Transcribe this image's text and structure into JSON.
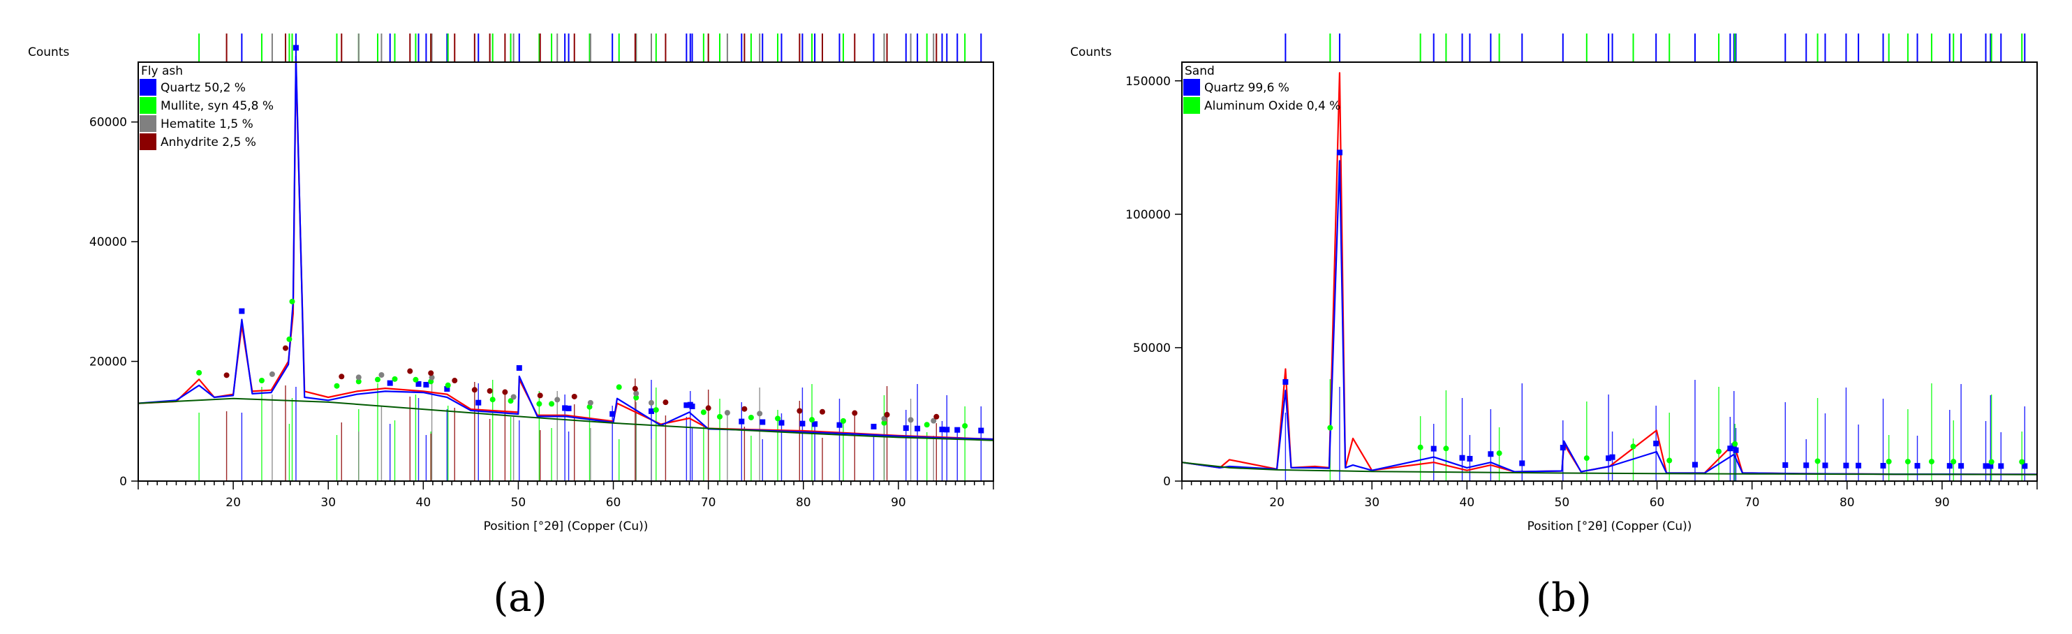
{
  "chart_data": [
    {
      "type": "line",
      "panel_label": "(a)",
      "title": "Fly ash",
      "xlabel": "Position [°2θ] (Copper (Cu))",
      "ylabel": "Counts",
      "xlim": [
        10,
        100
      ],
      "ylim": [
        0,
        70000
      ],
      "x_ticks": [
        20,
        30,
        40,
        50,
        60,
        70,
        80,
        90
      ],
      "y_ticks": [
        0,
        20000,
        40000,
        60000
      ],
      "legend_placement": "top-left",
      "legend": [
        {
          "label": "Quartz 50,2 %",
          "color": "#0000ff"
        },
        {
          "label": "Mullite, syn 45,8 %",
          "color": "#00ff00"
        },
        {
          "label": "Hematite 1,5 %",
          "color": "#808080"
        },
        {
          "label": "Anhydrite 2,5 %",
          "color": "#8b0000"
        }
      ],
      "series": [
        {
          "color": "#ff0000",
          "x": [
            10,
            14,
            16.4,
            18,
            20,
            20.9,
            22,
            24,
            25.8,
            26.3,
            26.6,
            27.5,
            30,
            33,
            36,
            40,
            42.5,
            45,
            50,
            50.1,
            52,
            55,
            60,
            60.4,
            65,
            68,
            70,
            75,
            80,
            85,
            90,
            95,
            100
          ],
          "y": [
            13000,
            13300,
            17000,
            14000,
            14500,
            26000,
            15000,
            15200,
            20000,
            28000,
            70000,
            15000,
            14000,
            15000,
            15500,
            15000,
            14500,
            12000,
            11500,
            17000,
            11000,
            11000,
            10000,
            13000,
            9500,
            10500,
            8800,
            8600,
            8400,
            8000,
            7600,
            7300,
            7000
          ]
        },
        {
          "color": "#0000ff",
          "x": [
            10,
            14,
            16.4,
            18,
            20,
            20.9,
            22,
            24,
            25.8,
            26.3,
            26.6,
            27.5,
            30,
            33,
            36,
            40,
            42.5,
            45,
            50,
            50.1,
            52,
            55,
            60,
            60.4,
            65,
            68,
            70,
            75,
            80,
            85,
            90,
            95,
            100
          ],
          "y": [
            13000,
            13500,
            16000,
            14000,
            14300,
            27000,
            14600,
            14800,
            19500,
            30000,
            71000,
            14000,
            13500,
            14500,
            15000,
            14800,
            14000,
            11800,
            11200,
            17500,
            10800,
            10800,
            9800,
            13800,
            9300,
            11500,
            8700,
            8500,
            8200,
            7900,
            7500,
            7200,
            7000
          ]
        },
        {
          "color": "#005a00",
          "x": [
            10,
            20,
            30,
            40,
            50,
            60,
            70,
            80,
            90,
            100
          ],
          "y": [
            13000,
            13800,
            13200,
            12000,
            10800,
            9700,
            8800,
            8000,
            7300,
            6800
          ]
        }
      ],
      "phase_markers": [
        {
          "phase": "Quartz",
          "color": "#0000ff",
          "x": [
            20.9,
            26.6,
            36.5,
            39.5,
            40.3,
            42.5,
            45.8,
            50.1,
            54.9,
            55.3,
            59.9,
            64.0,
            67.7,
            68.1,
            68.3,
            73.5,
            75.7,
            77.7,
            79.9,
            81.2,
            83.8,
            87.4,
            90.8,
            92.0,
            94.6,
            95.1,
            96.2,
            98.7
          ]
        },
        {
          "phase": "Mullite, syn",
          "color": "#00ff00",
          "x": [
            16.4,
            23.0,
            25.9,
            26.2,
            30.9,
            33.2,
            35.2,
            37.0,
            39.2,
            40.8,
            42.6,
            47.3,
            49.2,
            52.2,
            53.5,
            57.5,
            60.6,
            62.4,
            64.5,
            69.5,
            71.2,
            74.5,
            77.3,
            80.9,
            84.2,
            88.5,
            93.0,
            97.0
          ]
        },
        {
          "phase": "Hematite",
          "color": "#808080",
          "x": [
            24.1,
            33.2,
            35.6,
            40.9,
            49.5,
            54.1,
            57.6,
            62.4,
            64.0,
            72.0,
            75.4,
            88.5,
            91.3,
            93.7
          ]
        },
        {
          "phase": "Anhydrite",
          "color": "#8b0000",
          "x": [
            19.3,
            25.5,
            31.4,
            38.6,
            40.8,
            43.3,
            45.4,
            47.0,
            48.6,
            52.3,
            55.9,
            62.3,
            65.5,
            70.0,
            73.8,
            79.6,
            82.0,
            85.4,
            88.8,
            94.0
          ]
        }
      ]
    },
    {
      "type": "line",
      "panel_label": "(b)",
      "title": "Sand",
      "xlabel": "Position [°2θ] (Copper (Cu))",
      "ylabel": "Counts",
      "xlim": [
        10,
        100
      ],
      "ylim": [
        0,
        157000
      ],
      "x_ticks": [
        20,
        30,
        40,
        50,
        60,
        70,
        80,
        90
      ],
      "y_ticks": [
        0,
        50000,
        100000,
        150000
      ],
      "legend_placement": "top-left",
      "legend": [
        {
          "label": "Quartz 99,6 %",
          "color": "#0000ff"
        },
        {
          "label": "Aluminum Oxide 0,4 %",
          "color": "#00ff00"
        }
      ],
      "series": [
        {
          "color": "#ff0000",
          "x": [
            10,
            14,
            15,
            20,
            20.9,
            21.5,
            24,
            25.5,
            26.6,
            27.2,
            28,
            30,
            36.5,
            40,
            42.5,
            45,
            50,
            50.2,
            52,
            55,
            59.95,
            61,
            65,
            68.1,
            69,
            70,
            75,
            80,
            85,
            90,
            95,
            100
          ],
          "y": [
            7000,
            5000,
            8000,
            4500,
            42000,
            5000,
            5500,
            5000,
            153000,
            5000,
            16000,
            4000,
            7000,
            4000,
            6000,
            3500,
            3800,
            14000,
            3500,
            5500,
            19000,
            3000,
            3000,
            14000,
            3000,
            3000,
            2800,
            2700,
            2600,
            2600,
            2500,
            2500
          ]
        },
        {
          "color": "#0000ff",
          "x": [
            10,
            14,
            15,
            20,
            20.9,
            21.5,
            24,
            25.5,
            26.6,
            27.2,
            28,
            30,
            36.5,
            40,
            42.5,
            45,
            50,
            50.2,
            52,
            55,
            59.95,
            61,
            65,
            68.1,
            69,
            70,
            75,
            80,
            85,
            90,
            95,
            100
          ],
          "y": [
            7000,
            5000,
            5500,
            4500,
            34000,
            5000,
            5000,
            4800,
            120000,
            5000,
            6000,
            4000,
            9000,
            5000,
            7000,
            3500,
            3800,
            15000,
            3500,
            5500,
            11000,
            3000,
            3000,
            10000,
            3000,
            3000,
            2800,
            2700,
            2600,
            2600,
            2500,
            2500
          ]
        },
        {
          "color": "#005a00",
          "x": [
            10,
            15,
            20,
            30,
            40,
            50,
            60,
            70,
            80,
            90,
            100
          ],
          "y": [
            7000,
            5000,
            4200,
            3600,
            3300,
            3000,
            2800,
            2700,
            2600,
            2500,
            2400
          ]
        }
      ],
      "phase_markers": [
        {
          "phase": "Quartz",
          "color": "#0000ff",
          "x": [
            20.9,
            26.6,
            36.5,
            39.5,
            40.3,
            42.5,
            45.8,
            50.1,
            54.9,
            55.3,
            59.9,
            64.0,
            67.7,
            68.1,
            68.3,
            73.5,
            75.7,
            77.7,
            79.9,
            81.2,
            83.8,
            87.4,
            90.8,
            92.0,
            94.6,
            95.1,
            96.2,
            98.7
          ]
        },
        {
          "phase": "Aluminum Oxide",
          "color": "#00ff00",
          "x": [
            25.6,
            35.1,
            37.8,
            43.4,
            52.6,
            57.5,
            61.3,
            66.5,
            68.2,
            76.9,
            84.4,
            86.4,
            88.9,
            91.2,
            95.2,
            98.4
          ]
        }
      ]
    }
  ]
}
